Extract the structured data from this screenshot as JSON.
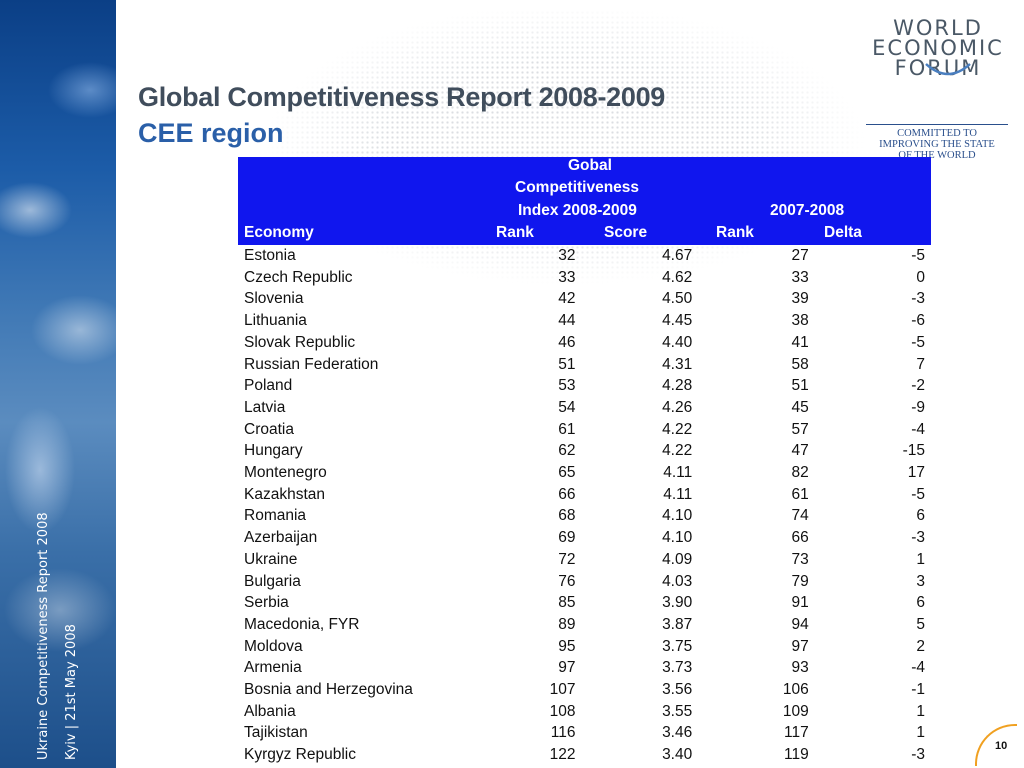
{
  "title": "Global Competitiveness Report 2008-2009",
  "subtitle": "CEE region",
  "logo": {
    "lines": [
      "WORLD",
      "ECONOMIC",
      "FORUM"
    ],
    "tagline": [
      "COMMITTED TO",
      "IMPROVING THE STATE",
      "OF THE WORLD"
    ]
  },
  "side": {
    "line1": "Ukraine Competitiveness Report 2008",
    "line2": "Kyiv | 21st May 2008"
  },
  "header": {
    "group1": [
      "Gobal",
      "Competitiveness",
      "Index 2008-2009"
    ],
    "group2": "2007-2008",
    "economy": "Economy",
    "rank": "Rank",
    "score": "Score",
    "rank2": "Rank",
    "delta": "Delta"
  },
  "rows": [
    [
      "Estonia",
      "32",
      "4.67",
      "27",
      "-5"
    ],
    [
      "Czech Republic",
      "33",
      "4.62",
      "33",
      "0"
    ],
    [
      "Slovenia",
      "42",
      "4.50",
      "39",
      "-3"
    ],
    [
      "Lithuania",
      "44",
      "4.45",
      "38",
      "-6"
    ],
    [
      "Slovak Republic",
      "46",
      "4.40",
      "41",
      "-5"
    ],
    [
      "Russian Federation",
      "51",
      "4.31",
      "58",
      "7"
    ],
    [
      "Poland",
      "53",
      "4.28",
      "51",
      "-2"
    ],
    [
      "Latvia",
      "54",
      "4.26",
      "45",
      "-9"
    ],
    [
      "Croatia",
      "61",
      "4.22",
      "57",
      "-4"
    ],
    [
      "Hungary",
      "62",
      "4.22",
      "47",
      "-15"
    ],
    [
      "Montenegro",
      "65",
      "4.11",
      "82",
      "17"
    ],
    [
      "Kazakhstan",
      "66",
      "4.11",
      "61",
      "-5"
    ],
    [
      "Romania",
      "68",
      "4.10",
      "74",
      "6"
    ],
    [
      "Azerbaijan",
      "69",
      "4.10",
      "66",
      "-3"
    ],
    [
      "Ukraine",
      "72",
      "4.09",
      "73",
      "1"
    ],
    [
      "Bulgaria",
      "76",
      "4.03",
      "79",
      "3"
    ],
    [
      "Serbia",
      "85",
      "3.90",
      "91",
      "6"
    ],
    [
      "Macedonia, FYR",
      "89",
      "3.87",
      "94",
      "5"
    ],
    [
      "Moldova",
      "95",
      "3.75",
      "97",
      "2"
    ],
    [
      "Armenia",
      "97",
      "3.73",
      "93",
      "-4"
    ],
    [
      "Bosnia and Herzegovina",
      "107",
      "3.56",
      "106",
      "-1"
    ],
    [
      "Albania",
      "108",
      "3.55",
      "109",
      "1"
    ],
    [
      "Tajikistan",
      "116",
      "3.46",
      "117",
      "1"
    ],
    [
      "Kyrgyz Republic",
      "122",
      "3.40",
      "119",
      "-3"
    ]
  ],
  "page_number": "10",
  "colors": {
    "header_bg": "#1016ee",
    "title": "#404d5c",
    "subtitle": "#2a5fa8"
  }
}
